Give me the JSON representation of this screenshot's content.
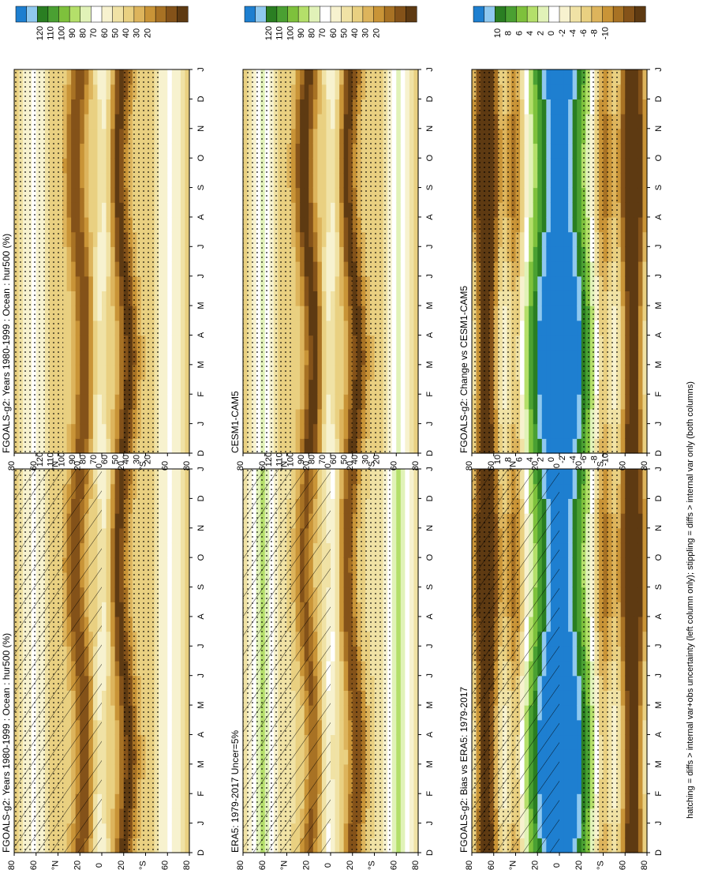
{
  "footer": "hatching = diffs > internal var+obs uncertainty (left column only); stippling = diffs > internal var only (both columns)",
  "months": [
    "D",
    "J",
    "F",
    "M",
    "A",
    "M",
    "J",
    "J",
    "A",
    "S",
    "O",
    "N",
    "D",
    "J"
  ],
  "lat_ticks": [
    "80",
    "60",
    "°N",
    "20",
    "0",
    "20",
    "°S",
    "60",
    "80"
  ],
  "colorbars": {
    "abs": {
      "labels": [
        "120",
        "110",
        "100",
        "90",
        "80",
        "70",
        "60",
        "50",
        "40",
        "30",
        "20"
      ],
      "colors": [
        "#1e7fd0",
        "#8fc8ef",
        "#2a7e22",
        "#4aa032",
        "#7ec13c",
        "#b4df6a",
        "#e1f2b8",
        "#ffffff",
        "#f7f2cf",
        "#f0e2a5",
        "#e9d081",
        "#ddb45c",
        "#c99437",
        "#a87224",
        "#845219",
        "#5e3a12"
      ]
    },
    "diff": {
      "labels": [
        "10",
        "8",
        "6",
        "4",
        "2",
        "0",
        "-2",
        "-4",
        "-6",
        "-8",
        "-10"
      ],
      "colors": [
        "#1e7fd0",
        "#8fc8ef",
        "#2a7e22",
        "#4aa032",
        "#7ec13c",
        "#b4df6a",
        "#e1f2b8",
        "#ffffff",
        "#f7f2cf",
        "#f0e2a5",
        "#e9d081",
        "#ddb45c",
        "#c99437",
        "#a87224",
        "#845219",
        "#5e3a12"
      ]
    }
  },
  "chart_data": [
    {
      "id": "model_clim",
      "type": "heatmap",
      "title": "FGOALS-g2: Years 1980-1999 : Ocean : hur500 (%)",
      "x_axis": "months D-J",
      "y_axis": "latitude 90S-90N",
      "colorbar": "abs",
      "legend_placement": "right",
      "hatching": true,
      "stippling": true
    },
    {
      "id": "ref_clim",
      "type": "heatmap",
      "title": "FGOALS-g2: Years 1980-1999 : Ocean : hur500 (%)",
      "x_axis": "months D-J",
      "y_axis": "latitude 90S-90N",
      "colorbar": "abs",
      "legend_placement": "right",
      "hatching": false,
      "stippling": true
    },
    {
      "id": "obs_clim",
      "type": "heatmap",
      "title": "ERA5: 1979-2017 Uncer=5%",
      "x_axis": "months D-J",
      "y_axis": "latitude 90S-90N",
      "colorbar": "abs",
      "legend_placement": "right",
      "hatching": true,
      "stippling": true
    },
    {
      "id": "cesm_clim",
      "type": "heatmap",
      "title": "CESM1-CAM5",
      "x_axis": "months D-J",
      "y_axis": "latitude 90S-90N",
      "colorbar": "abs",
      "legend_placement": "right",
      "hatching": false,
      "stippling": true
    },
    {
      "id": "bias",
      "type": "heatmap",
      "title": "FGOALS-g2: Bias vs ERA5: 1979-2017",
      "x_axis": "months D-J",
      "y_axis": "latitude 90S-90N",
      "colorbar": "diff",
      "legend_placement": "right",
      "hatching": true,
      "stippling": true
    },
    {
      "id": "change",
      "type": "heatmap",
      "title": "FGOALS-g2: Change vs CESM1-CAM5",
      "x_axis": "months D-J",
      "y_axis": "latitude 90S-90N",
      "colorbar": "diff",
      "legend_placement": "right",
      "hatching": false,
      "stippling": true
    }
  ]
}
